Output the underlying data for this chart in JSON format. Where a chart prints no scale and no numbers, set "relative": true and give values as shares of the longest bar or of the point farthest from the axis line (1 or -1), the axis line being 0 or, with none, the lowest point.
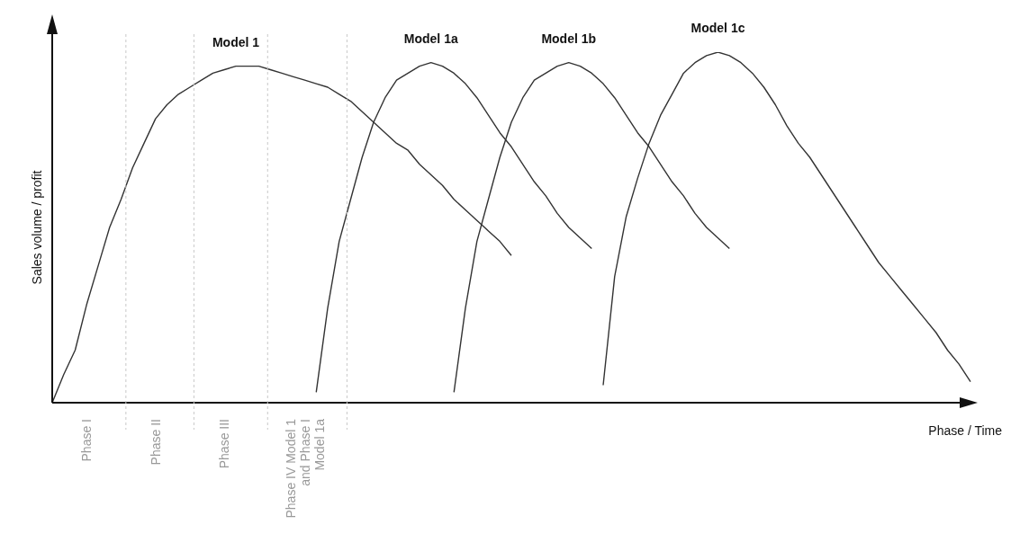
{
  "chart_data": {
    "type": "line",
    "relative": true,
    "xlabel": "Phase / Time",
    "ylabel": "Sales volume / profit",
    "categories": [
      null,
      null,
      null,
      "Phase I",
      null,
      null,
      null,
      null,
      null,
      "Phase II",
      null,
      null,
      null,
      null,
      null,
      "Phase III",
      null,
      null,
      null,
      null,
      null,
      null,
      "Phase IV Model 1 and  Phase I Model 1a",
      null,
      null,
      null,
      null,
      null,
      null,
      null,
      null,
      null,
      null,
      null,
      null,
      null,
      null,
      null,
      null,
      null,
      null,
      null,
      null,
      null,
      null,
      null,
      null,
      null,
      null,
      null,
      null,
      null,
      null,
      null,
      null,
      null,
      null,
      null,
      null,
      null,
      null,
      null,
      null,
      null,
      null,
      null,
      null,
      null,
      null,
      null,
      null,
      null,
      null,
      null,
      null,
      null,
      null,
      null,
      null,
      null,
      null
    ],
    "series": [
      {
        "name": "Model 1",
        "color": "#333333",
        "values": [
          0,
          0.08,
          0.15,
          0.28,
          0.39,
          0.5,
          0.58,
          0.67,
          0.74,
          0.81,
          0.85,
          0.88,
          0.9,
          0.92,
          0.94,
          0.95,
          0.96,
          0.96,
          0.96,
          0.95,
          0.94,
          0.93,
          0.92,
          0.91,
          0.9,
          0.88,
          0.86,
          0.83,
          0.8,
          0.77,
          0.74,
          0.72,
          0.68,
          0.65,
          0.62,
          0.58,
          0.55,
          0.52,
          0.49,
          0.46,
          0.42,
          null,
          null,
          null,
          null,
          null,
          null,
          null,
          null,
          null,
          null,
          null,
          null,
          null,
          null,
          null,
          null,
          null,
          null,
          null,
          null,
          null,
          null,
          null,
          null,
          null,
          null,
          null,
          null,
          null,
          null,
          null,
          null,
          null,
          null,
          null,
          null,
          null,
          null,
          null,
          null
        ]
      },
      {
        "name": "Model 1a",
        "color": "#333333",
        "values": [
          null,
          null,
          null,
          null,
          null,
          null,
          null,
          null,
          null,
          null,
          null,
          null,
          null,
          null,
          null,
          null,
          null,
          null,
          null,
          null,
          null,
          null,
          null,
          0.03,
          0.27,
          0.46,
          0.58,
          0.7,
          0.8,
          0.87,
          0.92,
          0.94,
          0.96,
          0.97,
          0.96,
          0.94,
          0.91,
          0.87,
          0.82,
          0.77,
          0.73,
          0.68,
          0.63,
          0.59,
          0.54,
          0.5,
          0.47,
          0.44,
          null,
          null,
          null,
          null,
          null,
          null,
          null,
          null,
          null,
          null,
          null,
          null,
          null,
          null,
          null,
          null,
          null,
          null,
          null,
          null,
          null,
          null,
          null,
          null,
          null,
          null,
          null,
          null,
          null,
          null,
          null,
          null,
          null
        ]
      },
      {
        "name": "Model 1b",
        "color": "#333333",
        "values": [
          null,
          null,
          null,
          null,
          null,
          null,
          null,
          null,
          null,
          null,
          null,
          null,
          null,
          null,
          null,
          null,
          null,
          null,
          null,
          null,
          null,
          null,
          null,
          null,
          null,
          null,
          null,
          null,
          null,
          null,
          null,
          null,
          null,
          null,
          null,
          0.03,
          0.27,
          0.46,
          0.58,
          0.7,
          0.8,
          0.87,
          0.92,
          0.94,
          0.96,
          0.97,
          0.96,
          0.94,
          0.91,
          0.87,
          0.82,
          0.77,
          0.73,
          0.68,
          0.63,
          0.59,
          0.54,
          0.5,
          0.47,
          0.44,
          null,
          null,
          null,
          null,
          null,
          null,
          null,
          null,
          null,
          null,
          null,
          null,
          null,
          null,
          null,
          null,
          null,
          null,
          null,
          null,
          null
        ]
      },
      {
        "name": "Model 1c",
        "color": "#333333",
        "values": [
          null,
          null,
          null,
          null,
          null,
          null,
          null,
          null,
          null,
          null,
          null,
          null,
          null,
          null,
          null,
          null,
          null,
          null,
          null,
          null,
          null,
          null,
          null,
          null,
          null,
          null,
          null,
          null,
          null,
          null,
          null,
          null,
          null,
          null,
          null,
          null,
          null,
          null,
          null,
          null,
          null,
          null,
          null,
          null,
          null,
          null,
          null,
          null,
          0.05,
          0.36,
          0.53,
          0.64,
          0.74,
          0.82,
          0.88,
          0.94,
          0.97,
          0.99,
          1,
          0.99,
          0.97,
          0.94,
          0.9,
          0.85,
          0.79,
          0.74,
          0.7,
          0.65,
          0.6,
          0.55,
          0.5,
          0.45,
          0.4,
          0.36,
          0.32,
          0.28,
          0.24,
          0.2,
          0.15,
          0.11,
          0.06
        ]
      }
    ]
  }
}
